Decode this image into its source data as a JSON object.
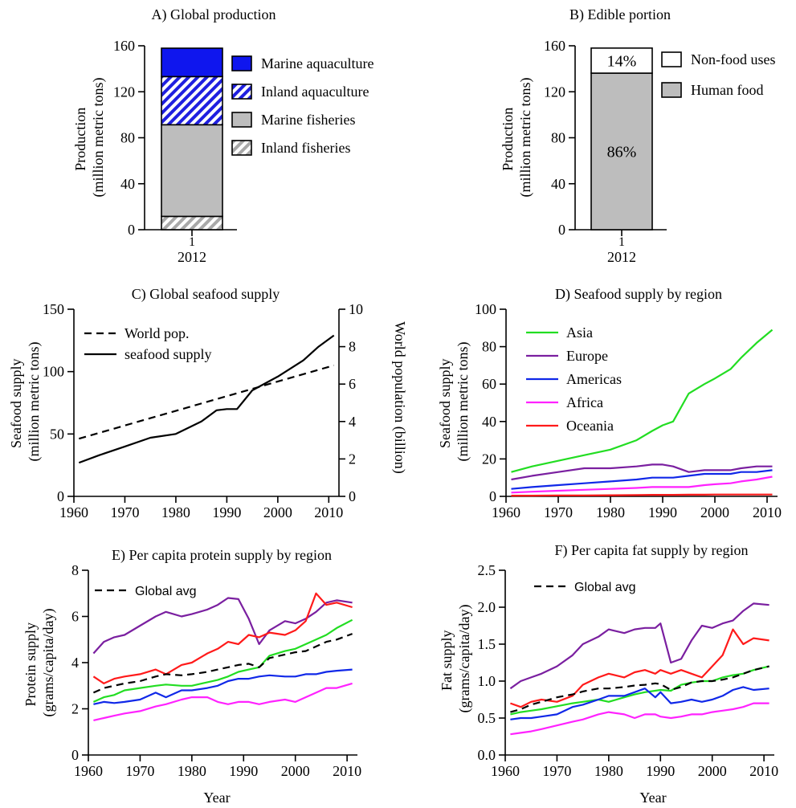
{
  "chart_data": [
    {
      "type": "bar",
      "panel": "A",
      "title": "A) Global production",
      "ylabel": "Production\n(million metric tons)",
      "xlabel": "",
      "ylim": [
        0,
        160
      ],
      "yticks": [
        0,
        40,
        80,
        120,
        160
      ],
      "x_tick_label": "1",
      "categories": [
        "2012"
      ],
      "stacked": true,
      "series": [
        {
          "name": "Inland fisheries",
          "values": [
            11.6
          ],
          "fill": "hatch-gray",
          "color": "#c0c0c0"
        },
        {
          "name": "Marine fisheries",
          "values": [
            79.7
          ],
          "fill": "solid",
          "color": "#bdbdbd"
        },
        {
          "name": "Inland aquaculture",
          "values": [
            41.9
          ],
          "fill": "hatch-blue",
          "color": "#1f1fe0"
        },
        {
          "name": "Marine aquaculture",
          "values": [
            24.7
          ],
          "fill": "solid",
          "color": "#0f16ee"
        }
      ],
      "legend_order": [
        "Marine aquaculture",
        "Inland aquaculture",
        "Marine fisheries",
        "Inland fisheries"
      ],
      "legend_position": "right"
    },
    {
      "type": "bar",
      "panel": "B",
      "title": "B) Edible portion",
      "ylabel": "Production\n(million metric tons)",
      "xlabel": "",
      "ylim": [
        0,
        160
      ],
      "yticks": [
        0,
        40,
        80,
        120,
        160
      ],
      "x_tick_label": "1",
      "categories": [
        "2012"
      ],
      "stacked": true,
      "series": [
        {
          "name": "Human food",
          "values": [
            136.2
          ],
          "label": "86%",
          "fill": "solid",
          "color": "#bdbdbd"
        },
        {
          "name": "Non-food uses",
          "values": [
            21.8
          ],
          "label": "14%",
          "fill": "solid",
          "color": "#ffffff"
        }
      ],
      "legend_order": [
        "Non-food uses",
        "Human food"
      ],
      "legend_position": "right"
    },
    {
      "type": "line",
      "panel": "C",
      "title": "C) Global seafood supply",
      "xlabel": "",
      "ylabel": "Seafood supply\n(million metric tons)",
      "ylabel_right": "World population (billion)",
      "xlim": [
        1960,
        2012
      ],
      "xticks": [
        1960,
        1970,
        1980,
        1990,
        2000,
        2010
      ],
      "ylim": [
        0,
        150
      ],
      "yticks": [
        0,
        50,
        100,
        150
      ],
      "ylim_right": [
        0,
        10
      ],
      "yticks_right": [
        0,
        2,
        4,
        6,
        8,
        10
      ],
      "legend_position": "top-left",
      "x_anchor": [
        1961,
        1965,
        1970,
        1975,
        1980,
        1985,
        1988,
        1990,
        1992,
        1995,
        2000,
        2005,
        2008,
        2011
      ],
      "series": [
        {
          "name": "World pop.",
          "axis": "right",
          "style": "dashed",
          "color": "#000000",
          "x": [
            1961,
            2011
          ],
          "values": [
            3.08,
            7.0
          ]
        },
        {
          "name": "seafood supply",
          "axis": "left",
          "style": "solid",
          "color": "#000000",
          "x": [
            1961,
            1965,
            1970,
            1975,
            1980,
            1985,
            1988,
            1990,
            1992,
            1995,
            2000,
            2005,
            2008,
            2011
          ],
          "values": [
            27,
            33,
            40,
            47,
            50,
            60,
            69,
            70,
            70,
            85,
            96,
            109,
            120,
            129
          ]
        }
      ]
    },
    {
      "type": "line",
      "panel": "D",
      "title": "D) Seafood supply by region",
      "xlabel": "",
      "ylabel": "Seafood supply\n(million metric tons)",
      "xlim": [
        1960,
        2012
      ],
      "xticks": [
        1960,
        1970,
        1980,
        1990,
        2000,
        2010
      ],
      "ylim": [
        0,
        100
      ],
      "yticks": [
        0,
        20,
        40,
        60,
        80,
        100
      ],
      "legend_position": "top-left",
      "x": [
        1961,
        1965,
        1970,
        1975,
        1980,
        1985,
        1988,
        1990,
        1992,
        1995,
        1998,
        2000,
        2003,
        2005,
        2008,
        2011
      ],
      "series": [
        {
          "name": "Asia",
          "color": "#22dd22",
          "values": [
            13,
            16,
            19,
            22,
            25,
            30,
            35,
            38,
            40,
            55,
            60,
            63,
            68,
            74,
            82,
            89
          ]
        },
        {
          "name": "Europe",
          "color": "#7a1fa0",
          "values": [
            9,
            11,
            13,
            15,
            15,
            16,
            17,
            17,
            16,
            13,
            14,
            14,
            14,
            15,
            16,
            16
          ]
        },
        {
          "name": "Americas",
          "color": "#1028e8",
          "values": [
            4,
            5,
            6,
            7,
            8,
            9,
            10,
            10,
            10,
            11,
            12,
            12,
            12,
            13,
            13,
            14
          ]
        },
        {
          "name": "Africa",
          "color": "#ff22ff",
          "values": [
            2,
            2.5,
            3,
            3.5,
            4,
            4.5,
            5,
            5,
            5,
            5,
            6,
            6.5,
            7,
            8,
            9,
            10.5
          ]
        },
        {
          "name": "Oceania",
          "color": "#ff1a1a",
          "values": [
            0.4,
            0.4,
            0.5,
            0.5,
            0.6,
            0.7,
            0.8,
            0.8,
            0.8,
            0.9,
            0.9,
            1.0,
            1.0,
            1.0,
            1.0,
            1.0
          ]
        }
      ]
    },
    {
      "type": "line",
      "panel": "E",
      "title": "E) Per capita protein supply by region",
      "xlabel": "Year",
      "ylabel": "Protein supply\n(grams/capita/day)",
      "xlim": [
        1960,
        2012
      ],
      "xticks": [
        1960,
        1970,
        1980,
        1990,
        2000,
        2010
      ],
      "ylim": [
        0,
        8
      ],
      "yticks": [
        0,
        2,
        4,
        6,
        8
      ],
      "legend_position": "top-left",
      "x": [
        1961,
        1963,
        1965,
        1967,
        1970,
        1973,
        1975,
        1978,
        1980,
        1983,
        1985,
        1987,
        1989,
        1991,
        1993,
        1995,
        1998,
        2000,
        2002,
        2004,
        2006,
        2008,
        2011
      ],
      "series": [
        {
          "name": "Global avg",
          "style": "dashed",
          "color": "#000000",
          "values": [
            2.7,
            2.9,
            3.0,
            3.1,
            3.2,
            3.4,
            3.5,
            3.45,
            3.5,
            3.6,
            3.7,
            3.8,
            3.9,
            3.95,
            3.8,
            4.2,
            4.35,
            4.45,
            4.5,
            4.7,
            4.9,
            5.0,
            5.25
          ]
        },
        {
          "name": "Purple",
          "style": "solid",
          "color": "#7a1fa0",
          "show_in_legend": false,
          "values": [
            4.4,
            4.9,
            5.1,
            5.2,
            5.6,
            6.0,
            6.2,
            6.0,
            6.1,
            6.3,
            6.5,
            6.8,
            6.75,
            5.9,
            4.8,
            5.4,
            5.8,
            5.7,
            5.9,
            6.2,
            6.6,
            6.7,
            6.6
          ]
        },
        {
          "name": "Red",
          "style": "solid",
          "color": "#ff1a1a",
          "show_in_legend": false,
          "values": [
            3.4,
            3.1,
            3.3,
            3.4,
            3.5,
            3.7,
            3.5,
            3.9,
            4.0,
            4.4,
            4.6,
            4.9,
            4.8,
            5.2,
            5.1,
            5.3,
            5.2,
            5.4,
            5.8,
            7.0,
            6.5,
            6.6,
            6.4
          ]
        },
        {
          "name": "Green",
          "style": "solid",
          "color": "#22dd22",
          "show_in_legend": false,
          "values": [
            2.3,
            2.5,
            2.6,
            2.8,
            2.9,
            3.0,
            3.05,
            3.0,
            3.0,
            3.15,
            3.25,
            3.4,
            3.6,
            3.7,
            3.8,
            4.3,
            4.5,
            4.6,
            4.8,
            5.0,
            5.2,
            5.5,
            5.85
          ]
        },
        {
          "name": "Blue",
          "style": "solid",
          "color": "#1028e8",
          "show_in_legend": false,
          "values": [
            2.2,
            2.3,
            2.25,
            2.3,
            2.4,
            2.7,
            2.5,
            2.8,
            2.8,
            2.9,
            3.0,
            3.2,
            3.3,
            3.3,
            3.4,
            3.45,
            3.4,
            3.4,
            3.5,
            3.5,
            3.6,
            3.65,
            3.7
          ]
        },
        {
          "name": "Magenta",
          "style": "solid",
          "color": "#ff22ff",
          "show_in_legend": false,
          "values": [
            1.5,
            1.6,
            1.7,
            1.8,
            1.9,
            2.1,
            2.2,
            2.4,
            2.5,
            2.5,
            2.3,
            2.2,
            2.3,
            2.3,
            2.2,
            2.3,
            2.4,
            2.3,
            2.5,
            2.7,
            2.9,
            2.9,
            3.1
          ]
        }
      ]
    },
    {
      "type": "line",
      "panel": "F",
      "title": "F) Per capita fat supply by region",
      "xlabel": "Year",
      "ylabel": "Fat supply\n(grams/capita/day)",
      "xlim": [
        1960,
        2012
      ],
      "xticks": [
        1960,
        1970,
        1980,
        1990,
        2000,
        2010
      ],
      "ylim": [
        0,
        2.5
      ],
      "yticks": [
        "0.0",
        "0.5",
        "1.0",
        "1.5",
        "2.0",
        "2.5"
      ],
      "legend_position": "top-left",
      "x": [
        1961,
        1963,
        1965,
        1967,
        1970,
        1973,
        1975,
        1978,
        1980,
        1983,
        1985,
        1987,
        1989,
        1990,
        1992,
        1994,
        1996,
        1998,
        2000,
        2002,
        2004,
        2006,
        2008,
        2011
      ],
      "series": [
        {
          "name": "Global avg",
          "style": "dashed",
          "color": "#000000",
          "values": [
            0.58,
            0.62,
            0.68,
            0.72,
            0.78,
            0.82,
            0.86,
            0.9,
            0.9,
            0.92,
            0.94,
            0.95,
            0.97,
            0.96,
            0.88,
            0.92,
            0.98,
            1.0,
            1.0,
            1.02,
            1.05,
            1.1,
            1.15,
            1.2
          ]
        },
        {
          "name": "Purple",
          "style": "solid",
          "color": "#7a1fa0",
          "show_in_legend": false,
          "values": [
            0.9,
            1.0,
            1.05,
            1.1,
            1.2,
            1.35,
            1.5,
            1.6,
            1.7,
            1.65,
            1.7,
            1.72,
            1.72,
            1.78,
            1.25,
            1.3,
            1.55,
            1.75,
            1.72,
            1.78,
            1.82,
            1.95,
            2.05,
            2.03
          ]
        },
        {
          "name": "Red",
          "style": "solid",
          "color": "#ff1a1a",
          "show_in_legend": false,
          "values": [
            0.7,
            0.65,
            0.72,
            0.75,
            0.72,
            0.8,
            0.95,
            1.05,
            1.1,
            1.05,
            1.12,
            1.15,
            1.1,
            1.15,
            1.1,
            1.15,
            1.1,
            1.05,
            1.2,
            1.35,
            1.7,
            1.5,
            1.58,
            1.55
          ]
        },
        {
          "name": "Green",
          "style": "solid",
          "color": "#22dd22",
          "show_in_legend": false,
          "values": [
            0.55,
            0.58,
            0.6,
            0.62,
            0.66,
            0.7,
            0.72,
            0.75,
            0.72,
            0.78,
            0.82,
            0.85,
            0.87,
            0.88,
            0.87,
            0.95,
            0.98,
            1.0,
            1.0,
            1.05,
            1.08,
            1.1,
            1.15,
            1.2
          ]
        },
        {
          "name": "Blue",
          "style": "solid",
          "color": "#1028e8",
          "show_in_legend": false,
          "values": [
            0.48,
            0.5,
            0.5,
            0.52,
            0.55,
            0.65,
            0.68,
            0.75,
            0.8,
            0.8,
            0.85,
            0.9,
            0.78,
            0.85,
            0.7,
            0.72,
            0.75,
            0.72,
            0.75,
            0.8,
            0.88,
            0.92,
            0.88,
            0.9
          ]
        },
        {
          "name": "Magenta",
          "style": "solid",
          "color": "#ff22ff",
          "show_in_legend": false,
          "values": [
            0.28,
            0.3,
            0.32,
            0.35,
            0.4,
            0.45,
            0.48,
            0.55,
            0.58,
            0.55,
            0.5,
            0.55,
            0.55,
            0.52,
            0.5,
            0.52,
            0.55,
            0.55,
            0.58,
            0.6,
            0.62,
            0.65,
            0.7,
            0.7
          ]
        }
      ]
    }
  ]
}
